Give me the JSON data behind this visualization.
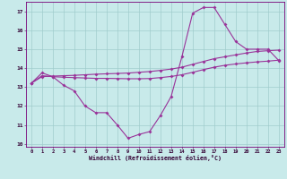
{
  "background_color": "#c8eaea",
  "grid_color": "#a0cccc",
  "line_color": "#993399",
  "xlabel": "Windchill (Refroidissement éolien,°C)",
  "ylim": [
    9.85,
    17.5
  ],
  "xlim": [
    -0.5,
    23.5
  ],
  "yticks": [
    10,
    11,
    12,
    13,
    14,
    15,
    16,
    17
  ],
  "xticks": [
    0,
    1,
    2,
    3,
    4,
    5,
    6,
    7,
    8,
    9,
    10,
    11,
    12,
    13,
    14,
    15,
    16,
    17,
    18,
    19,
    20,
    21,
    22,
    23
  ],
  "line1_x": [
    0,
    1,
    2,
    3,
    4,
    5,
    6,
    7,
    8,
    9,
    10,
    11,
    12,
    13,
    14,
    15,
    16,
    17,
    18,
    19,
    20,
    21,
    22,
    23
  ],
  "line1_y": [
    13.2,
    13.75,
    13.55,
    13.1,
    12.8,
    12.0,
    11.65,
    11.65,
    11.0,
    10.3,
    10.5,
    10.65,
    11.5,
    12.5,
    14.6,
    16.9,
    17.2,
    17.2,
    16.3,
    15.4,
    15.0,
    15.0,
    15.0,
    14.4
  ],
  "line2_x": [
    0,
    1,
    2,
    3,
    4,
    5,
    6,
    7,
    8,
    9,
    10,
    11,
    12,
    13,
    14,
    15,
    16,
    17,
    18,
    19,
    20,
    21,
    22,
    23
  ],
  "line2_y": [
    13.2,
    13.55,
    13.58,
    13.6,
    13.62,
    13.65,
    13.68,
    13.7,
    13.72,
    13.74,
    13.78,
    13.82,
    13.88,
    13.95,
    14.05,
    14.2,
    14.35,
    14.5,
    14.6,
    14.7,
    14.8,
    14.88,
    14.92,
    14.95
  ],
  "line3_x": [
    0,
    1,
    2,
    3,
    4,
    5,
    6,
    7,
    8,
    9,
    10,
    11,
    12,
    13,
    14,
    15,
    16,
    17,
    18,
    19,
    20,
    21,
    22,
    23
  ],
  "line3_y": [
    13.2,
    13.6,
    13.55,
    13.52,
    13.5,
    13.48,
    13.46,
    13.46,
    13.45,
    13.44,
    13.44,
    13.45,
    13.5,
    13.56,
    13.65,
    13.78,
    13.92,
    14.05,
    14.15,
    14.22,
    14.28,
    14.33,
    14.37,
    14.42
  ]
}
